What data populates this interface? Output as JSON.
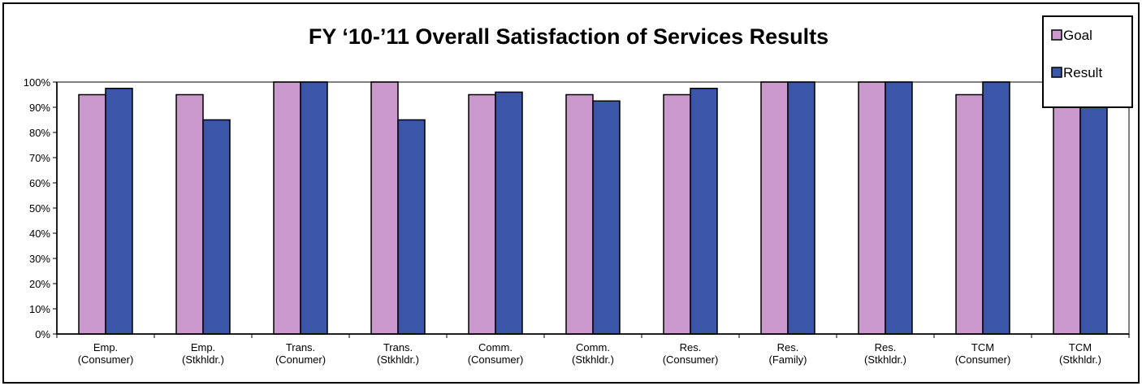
{
  "chart_data": {
    "type": "bar",
    "title": "FY ‘10-’11 Overall Satisfaction of Services Results",
    "xlabel": "",
    "ylabel": "",
    "ylim": [
      0,
      100
    ],
    "y_ticks": [
      "0%",
      "10%",
      "20%",
      "30%",
      "40%",
      "50%",
      "60%",
      "70%",
      "80%",
      "90%",
      "100%"
    ],
    "grid": false,
    "legend_position": "top-right",
    "categories": [
      [
        "Emp.",
        "(Consumer)"
      ],
      [
        "Emp.",
        "(Stkhldr.)"
      ],
      [
        "Trans.",
        "(Conumer)"
      ],
      [
        "Trans.",
        "(Stkhldr.)"
      ],
      [
        "Comm.",
        "(Consumer)"
      ],
      [
        "Comm.",
        "(Stkhldr.)"
      ],
      [
        "Res.",
        "(Consumer)"
      ],
      [
        "Res.",
        "(Family)"
      ],
      [
        "Res.",
        "(Stkhldr.)"
      ],
      [
        "TCM",
        "(Consumer)"
      ],
      [
        "TCM",
        "(Stkhldr.)"
      ]
    ],
    "series": [
      {
        "name": "Goal",
        "color": "#cc99cc",
        "values": [
          95,
          95,
          100,
          100,
          95,
          95,
          95,
          100,
          100,
          95,
          95
        ]
      },
      {
        "name": "Result",
        "color": "#3b55a8",
        "values": [
          97.5,
          85,
          100,
          85,
          96,
          92.5,
          97.5,
          100,
          100,
          100,
          100
        ]
      }
    ]
  }
}
